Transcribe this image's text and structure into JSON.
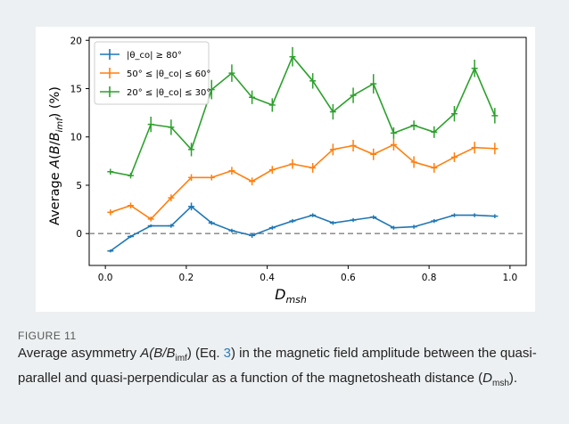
{
  "figure": {
    "label": "FIGURE 11",
    "caption_parts": {
      "c1": "Average asymmetry ",
      "c2": "A(B/B",
      "c3": "imf",
      "c4": ") (Eq. ",
      "c5": "3",
      "c6": ") in the magnetic field amplitude between the quasi-parallel and quasi-perpendicular as a function of the magnetosheath distance (",
      "c7": "D",
      "c8": "msh",
      "c9": ")."
    }
  },
  "chart_data": {
    "type": "line",
    "xlabel": "D_msh",
    "ylabel": "Average A(B/B_imf) (%)",
    "xlim": [
      -0.04,
      1.04
    ],
    "ylim": [
      -3.3,
      20.3
    ],
    "xticks": [
      "0.0",
      "0.2",
      "0.4",
      "0.6",
      "0.8",
      "1.0"
    ],
    "yticks": [
      "0",
      "5",
      "10",
      "15",
      "20"
    ],
    "reference_line": {
      "y": 0,
      "style": "dashed",
      "color": "#808080"
    },
    "legend_position": "top-left",
    "x": [
      0.0125,
      0.0625,
      0.1125,
      0.1625,
      0.2125,
      0.2625,
      0.3125,
      0.3625,
      0.4125,
      0.4625,
      0.5125,
      0.5625,
      0.6125,
      0.6625,
      0.7125,
      0.7625,
      0.8125,
      0.8625,
      0.9125,
      0.9625
    ],
    "series": [
      {
        "name": "|θ_co| ≥ 80°",
        "color": "#1f77b4",
        "values": [
          -1.8,
          -0.3,
          0.8,
          0.8,
          2.8,
          1.1,
          0.3,
          -0.2,
          0.6,
          1.3,
          1.9,
          1.1,
          1.4,
          1.7,
          0.6,
          0.7,
          1.3,
          1.9,
          1.9,
          1.8
        ],
        "errors": [
          0.15,
          0.15,
          0.15,
          0.2,
          0.4,
          0.2,
          0.2,
          0.25,
          0.2,
          0.2,
          0.2,
          0.2,
          0.2,
          0.2,
          0.2,
          0.2,
          0.2,
          0.2,
          0.2,
          0.2
        ]
      },
      {
        "name": "50° ≤ |θ_co| ≤ 60°",
        "color": "#ff7f0e",
        "values": [
          2.2,
          2.9,
          1.5,
          3.7,
          5.8,
          5.8,
          6.5,
          5.4,
          6.6,
          7.2,
          6.8,
          8.7,
          9.1,
          8.2,
          9.2,
          7.4,
          6.8,
          7.9,
          8.9,
          8.8
        ],
        "errors": [
          0.3,
          0.3,
          0.25,
          0.35,
          0.35,
          0.3,
          0.4,
          0.4,
          0.4,
          0.5,
          0.5,
          0.6,
          0.6,
          0.6,
          0.6,
          0.6,
          0.5,
          0.5,
          0.6,
          0.6
        ]
      },
      {
        "name": "20° ≤ |θ_co| ≤ 30°",
        "color": "#2ca02c",
        "values": [
          6.4,
          6.0,
          11.3,
          11.0,
          8.7,
          14.9,
          16.6,
          14.1,
          13.3,
          18.3,
          15.8,
          12.6,
          14.3,
          15.5,
          10.4,
          11.2,
          10.5,
          12.4,
          17.1,
          12.2
        ],
        "errors": [
          0.3,
          0.3,
          0.8,
          0.8,
          0.7,
          1.0,
          0.9,
          0.7,
          0.7,
          1.0,
          0.8,
          0.8,
          0.8,
          1.0,
          0.6,
          0.5,
          0.6,
          0.8,
          0.9,
          0.8
        ]
      }
    ]
  }
}
